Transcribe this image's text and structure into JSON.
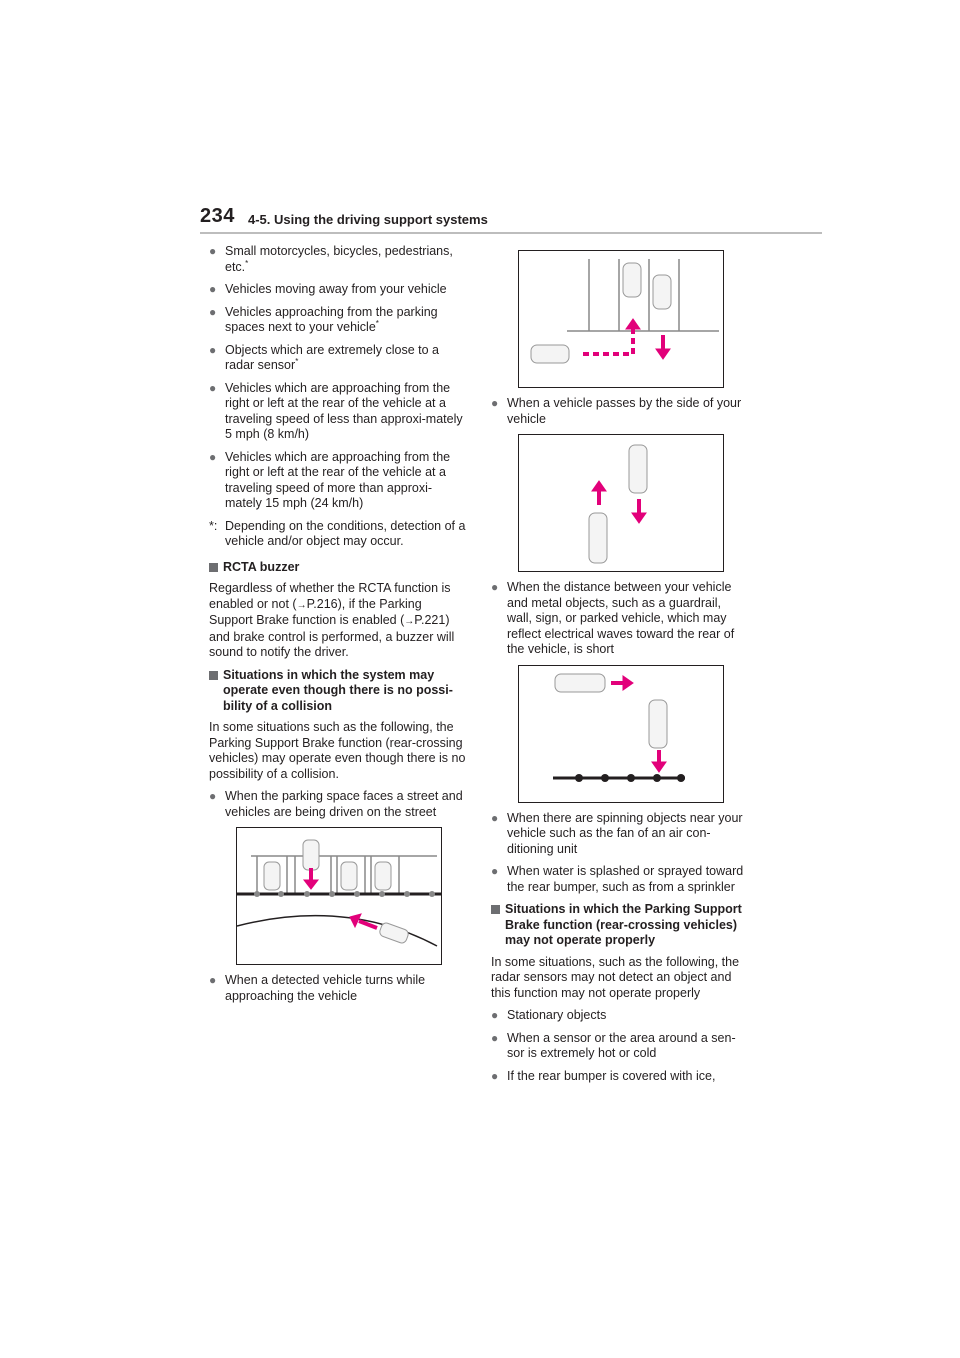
{
  "header": {
    "page_number": "234",
    "section": "4-5. Using the driving support systems"
  },
  "left": {
    "bullets_top": [
      {
        "text": "Small motorcycles, bicycles, pedestrians, etc.",
        "note": "*"
      },
      {
        "text": "Vehicles moving away from your vehicle",
        "note": ""
      },
      {
        "text": "Vehicles approaching from the parking spaces next to your vehicle",
        "note": "*"
      },
      {
        "text": "Objects which are extremely close to a radar sensor",
        "note": "*"
      },
      {
        "text": "Vehicles which are approaching from the right or left at the rear of the vehicle at a traveling speed of less than approxi-mately 5 mph (8 km/h)",
        "note": ""
      },
      {
        "text": "Vehicles which are approaching from the right or left at the rear of the vehicle at a traveling speed of more than approxi-mately 15 mph (24 km/h)",
        "note": ""
      }
    ],
    "footnote_mark": "*:",
    "footnote_text": "Depending on the conditions, detection of a vehicle and/or object may occur.",
    "rcta_heading": "RCTA buzzer",
    "rcta_para": {
      "p1": "Regardless of whether the RCTA function is enabled or not (",
      "ref1": "P.216",
      "p2": "), if the Parking Support Brake function is enabled (",
      "ref2": "P.221",
      "p3": ") and brake control is performed, a buzzer will sound to notify the driver."
    },
    "situations_heading": "Situations in which the system may operate even though there is no possi-bility of a collision",
    "situations_para": "In some situations such as the following, the Parking Support Brake function (rear-crossing vehicles) may operate even though there is no possibility of a collision.",
    "bullet_street": "When the parking space faces a street and vehicles are being driven on the street",
    "bullet_turns": "When a detected vehicle turns while approaching the vehicle"
  },
  "right": {
    "bullet_passes": "When a vehicle passes by the side of your vehicle",
    "bullet_distance": "When the distance between your vehicle and metal objects, such as a guardrail, wall, sign, or parked vehicle, which may reflect electrical waves toward the rear of the vehicle, is short",
    "bullet_spinning": "When there are spinning objects near your vehicle such as the fan of an air con-ditioning unit",
    "bullet_water": "When water is splashed or sprayed toward the rear bumper, such as from a sprinkler",
    "not_operate_heading": "Situations in which the Parking Support Brake function (rear-crossing vehicles) may not operate properly",
    "not_operate_para": "In some situations, such as the following, the radar sensors may not detect an object and this function may not operate properly",
    "bullets_bottom": [
      "Stationary objects",
      "When a sensor or the area around a sen-sor is extremely hot or cold",
      "If the rear bumper is covered with ice,"
    ]
  },
  "icons": {
    "bullet": "●",
    "arrow": "→"
  },
  "colors": {
    "accent_arrow": "#e2007a",
    "bullet_gray": "#6d6e71"
  }
}
